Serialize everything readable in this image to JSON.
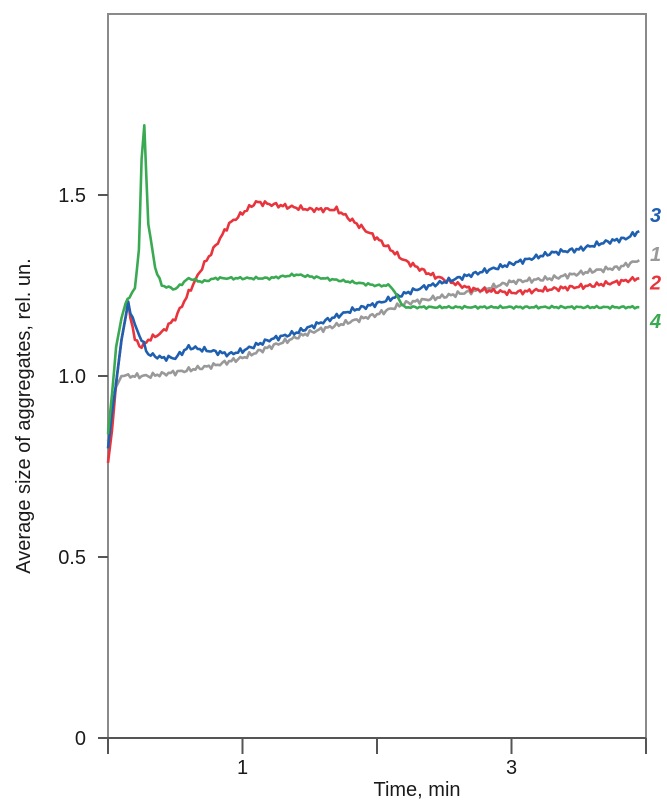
{
  "chart_data": {
    "type": "line",
    "xlabel": "Time, min",
    "ylabel": "Average size of aggregates, rel. un.",
    "xlim": [
      0,
      4
    ],
    "ylim": [
      0,
      2.0
    ],
    "x_ticks": [
      {
        "value": 1,
        "label": "1"
      },
      {
        "value": 2,
        "label": ""
      },
      {
        "value": 3,
        "label": "3"
      },
      {
        "value": 4,
        "label": ""
      }
    ],
    "y_ticks": [
      {
        "value": 0,
        "label": "0"
      },
      {
        "value": 0.5,
        "label": "0.5"
      },
      {
        "value": 1.0,
        "label": "1.0"
      },
      {
        "value": 1.5,
        "label": "1.5"
      }
    ],
    "grid": false,
    "series": [
      {
        "name": "1",
        "color": "#999999",
        "x": [
          0,
          0.03,
          0.06,
          0.1,
          0.15,
          0.2,
          0.3,
          0.5,
          0.8,
          1.0,
          1.2,
          1.5,
          1.8,
          2.0,
          2.2,
          2.5,
          2.8,
          3.0,
          3.3,
          3.6,
          3.8,
          3.95
        ],
        "y": [
          0.82,
          0.9,
          0.97,
          1.0,
          1.0,
          1.0,
          1.0,
          1.01,
          1.03,
          1.05,
          1.08,
          1.12,
          1.15,
          1.17,
          1.2,
          1.22,
          1.24,
          1.26,
          1.27,
          1.29,
          1.3,
          1.32
        ]
      },
      {
        "name": "2",
        "color": "#e8343c",
        "x": [
          0,
          0.03,
          0.06,
          0.1,
          0.15,
          0.2,
          0.25,
          0.3,
          0.4,
          0.5,
          0.7,
          0.9,
          1.1,
          1.3,
          1.5,
          1.7,
          1.85,
          2.0,
          2.2,
          2.4,
          2.7,
          3.0,
          3.3,
          3.6,
          3.8,
          3.95
        ],
        "y": [
          0.76,
          0.85,
          0.98,
          1.1,
          1.2,
          1.1,
          1.08,
          1.1,
          1.12,
          1.16,
          1.3,
          1.42,
          1.48,
          1.47,
          1.46,
          1.46,
          1.42,
          1.38,
          1.32,
          1.28,
          1.24,
          1.23,
          1.24,
          1.25,
          1.26,
          1.27
        ]
      },
      {
        "name": "3",
        "color": "#1e5fb0",
        "x": [
          0,
          0.03,
          0.06,
          0.1,
          0.15,
          0.2,
          0.25,
          0.3,
          0.4,
          0.5,
          0.6,
          0.75,
          0.9,
          1.0,
          1.2,
          1.4,
          1.6,
          1.8,
          2.0,
          2.3,
          2.6,
          2.9,
          3.1,
          3.3,
          3.5,
          3.7,
          3.85,
          3.95
        ],
        "y": [
          0.8,
          0.9,
          0.98,
          1.1,
          1.2,
          1.14,
          1.1,
          1.06,
          1.05,
          1.05,
          1.08,
          1.07,
          1.06,
          1.07,
          1.1,
          1.12,
          1.15,
          1.18,
          1.2,
          1.24,
          1.27,
          1.3,
          1.32,
          1.34,
          1.35,
          1.37,
          1.38,
          1.4
        ]
      },
      {
        "name": "4",
        "color": "#3aaa52",
        "x": [
          0,
          0.03,
          0.06,
          0.1,
          0.13,
          0.16,
          0.2,
          0.23,
          0.25,
          0.27,
          0.3,
          0.35,
          0.4,
          0.5,
          0.6,
          0.7,
          0.8,
          1.0,
          1.2,
          1.4,
          1.6,
          1.8,
          2.0,
          2.1,
          2.2,
          2.4,
          2.6,
          2.8,
          3.0,
          3.2,
          3.4,
          3.6,
          3.8,
          3.95
        ],
        "y": [
          0.84,
          0.95,
          1.08,
          1.16,
          1.2,
          1.22,
          1.24,
          1.35,
          1.6,
          1.69,
          1.42,
          1.3,
          1.25,
          1.24,
          1.27,
          1.26,
          1.27,
          1.27,
          1.27,
          1.28,
          1.27,
          1.26,
          1.25,
          1.25,
          1.19,
          1.19,
          1.19,
          1.19,
          1.19,
          1.19,
          1.19,
          1.19,
          1.19,
          1.19
        ]
      }
    ]
  }
}
